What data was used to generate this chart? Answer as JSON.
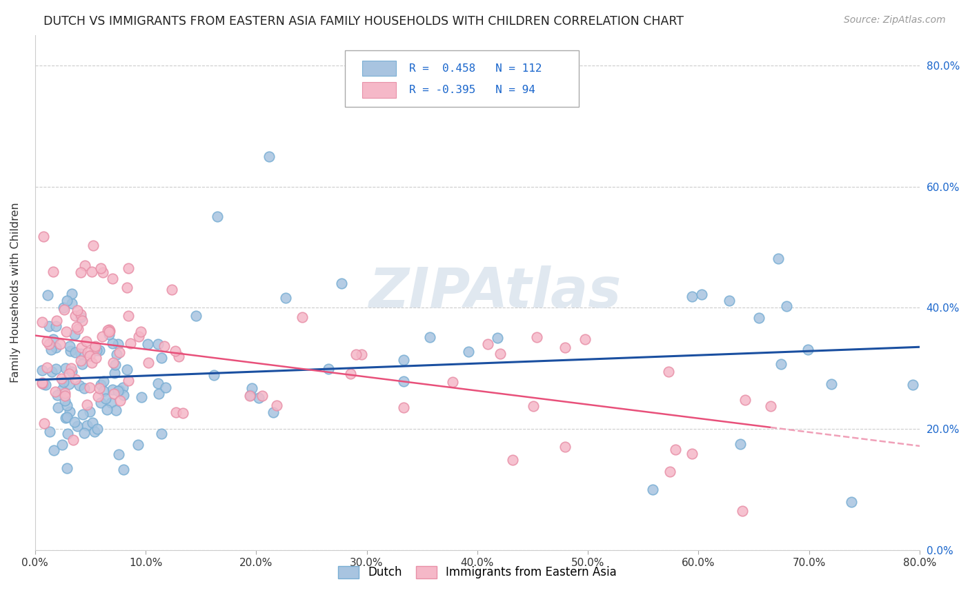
{
  "title": "DUTCH VS IMMIGRANTS FROM EASTERN ASIA FAMILY HOUSEHOLDS WITH CHILDREN CORRELATION CHART",
  "source": "Source: ZipAtlas.com",
  "ylabel": "Family Households with Children",
  "legend_labels": [
    "Dutch",
    "Immigrants from Eastern Asia"
  ],
  "blue_face_color": "#a8c4e0",
  "blue_edge_color": "#7aafd4",
  "pink_face_color": "#f5b8c8",
  "pink_edge_color": "#e890a8",
  "blue_line_color": "#1a4fa0",
  "pink_line_color": "#e8507a",
  "pink_dash_color": "#f0a0b8",
  "R_blue": 0.458,
  "N_blue": 112,
  "R_pink": -0.395,
  "N_pink": 94,
  "xmin": 0.0,
  "xmax": 0.8,
  "ymin": 0.0,
  "ymax": 0.85,
  "yticks": [
    0.0,
    0.2,
    0.4,
    0.6,
    0.8
  ],
  "xticks": [
    0.0,
    0.1,
    0.2,
    0.3,
    0.4,
    0.5,
    0.6,
    0.7,
    0.8
  ],
  "watermark": "ZIPAtlas",
  "legend_text1": "R =  0.458   N = 112",
  "legend_text2": "R = -0.395   N = 94"
}
